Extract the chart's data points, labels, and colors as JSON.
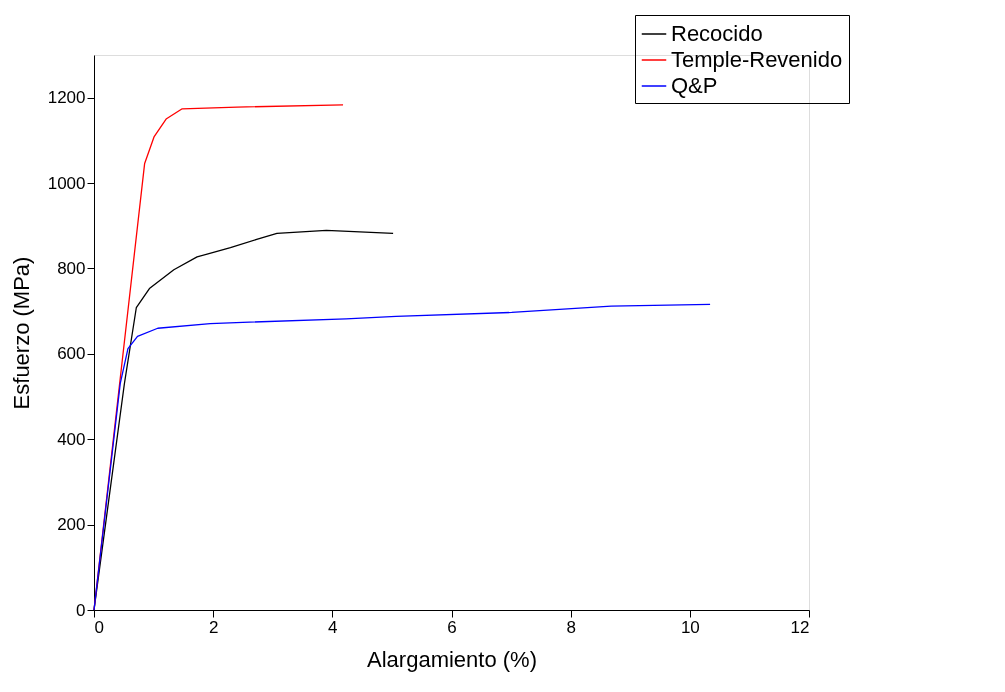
{
  "chart_data": {
    "type": "line",
    "xlabel": "Alargamiento (%)",
    "ylabel": "Esfuerzo (MPa)",
    "xlim": [
      0,
      12
    ],
    "ylim": [
      0,
      1300
    ],
    "xticks": [
      0,
      2,
      4,
      6,
      8,
      10,
      12
    ],
    "yticks": [
      0,
      200,
      400,
      600,
      800,
      1000,
      1200
    ],
    "grid": false,
    "legend": "top right",
    "marker": "none",
    "line_style": "solid",
    "series": [
      {
        "name": "Recocido",
        "color": "#000000",
        "x": [
          0,
          0.51,
          0.71,
          0.93,
          1.34,
          1.73,
          2.29,
          2.73,
          3.07,
          3.9,
          5.02
        ],
        "values": [
          0,
          530,
          708,
          753,
          797,
          827,
          849,
          868,
          882,
          889,
          882
        ]
      },
      {
        "name": "Temple-Revenido",
        "color": "#ff0000",
        "x": [
          0,
          0.43,
          0.85,
          1.01,
          1.21,
          1.48,
          2.4,
          4.18
        ],
        "values": [
          0,
          530,
          1046,
          1109,
          1150,
          1174,
          1178,
          1183
        ]
      },
      {
        "name": "Q&P",
        "color": "#0000ff",
        "x": [
          0,
          0.44,
          0.57,
          0.73,
          1.07,
          1.95,
          4.23,
          5.07,
          7.01,
          8.68,
          10.34
        ],
        "values": [
          0,
          530,
          612,
          641,
          660,
          671,
          682,
          688,
          697,
          712,
          716
        ]
      }
    ]
  }
}
